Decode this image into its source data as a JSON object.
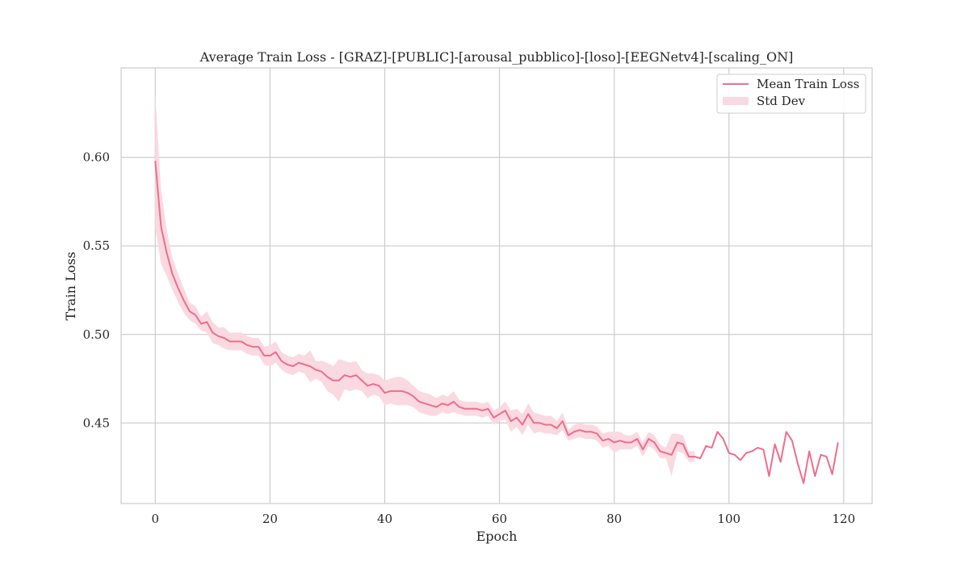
{
  "chart_data": {
    "type": "line",
    "title": "Average Train Loss - [GRAZ]-[PUBLIC]-[arousal_pubblico]-[loso]-[EEGNetv4]-[scaling_ON]",
    "xlabel": "Epoch",
    "ylabel": "Train Loss",
    "xlim": [
      -5.95,
      124.95
    ],
    "ylim": [
      0.4045,
      0.6505
    ],
    "xticks": [
      0,
      20,
      40,
      60,
      80,
      100,
      120
    ],
    "yticks": [
      0.45,
      0.5,
      0.55,
      0.6
    ],
    "xtick_labels": [
      "0",
      "20",
      "40",
      "60",
      "80",
      "100",
      "120"
    ],
    "ytick_labels": [
      "0.45",
      "0.50",
      "0.55",
      "0.60"
    ],
    "grid": true,
    "legend_position": "top-right",
    "colors": {
      "line": "#ee6e8c",
      "band": "#fbd9e1",
      "grid": "#cccccc",
      "frame": "#cccccc"
    },
    "series": [
      {
        "name": "Mean Train Loss",
        "kind": "line",
        "x": [
          0,
          1,
          2,
          3,
          4,
          5,
          6,
          7,
          8,
          9,
          10,
          11,
          12,
          13,
          14,
          15,
          16,
          17,
          18,
          19,
          20,
          21,
          22,
          23,
          24,
          25,
          26,
          27,
          28,
          29,
          30,
          31,
          32,
          33,
          34,
          35,
          36,
          37,
          38,
          39,
          40,
          41,
          42,
          43,
          44,
          45,
          46,
          47,
          48,
          49,
          50,
          51,
          52,
          53,
          54,
          55,
          56,
          57,
          58,
          59,
          60,
          61,
          62,
          63,
          64,
          65,
          66,
          67,
          68,
          69,
          70,
          71,
          72,
          73,
          74,
          75,
          76,
          77,
          78,
          79,
          80,
          81,
          82,
          83,
          84,
          85,
          86,
          87,
          88,
          89,
          90,
          91,
          92,
          93,
          94,
          95,
          96,
          97,
          98,
          99,
          100,
          101,
          102,
          103,
          104,
          105,
          106,
          107,
          108,
          109,
          110,
          111,
          112,
          113,
          114,
          115,
          116,
          117,
          118,
          119
        ],
        "y": [
          0.598,
          0.561,
          0.546,
          0.534,
          0.526,
          0.519,
          0.513,
          0.511,
          0.506,
          0.507,
          0.501,
          0.499,
          0.498,
          0.496,
          0.496,
          0.496,
          0.494,
          0.493,
          0.493,
          0.488,
          0.488,
          0.49,
          0.485,
          0.483,
          0.482,
          0.484,
          0.483,
          0.482,
          0.48,
          0.479,
          0.476,
          0.474,
          0.474,
          0.477,
          0.476,
          0.477,
          0.474,
          0.471,
          0.472,
          0.471,
          0.467,
          0.468,
          0.468,
          0.468,
          0.467,
          0.465,
          0.462,
          0.461,
          0.46,
          0.459,
          0.461,
          0.46,
          0.462,
          0.459,
          0.458,
          0.458,
          0.458,
          0.457,
          0.458,
          0.453,
          0.455,
          0.457,
          0.451,
          0.453,
          0.449,
          0.455,
          0.45,
          0.45,
          0.449,
          0.449,
          0.447,
          0.451,
          0.443,
          0.445,
          0.446,
          0.445,
          0.445,
          0.444,
          0.44,
          0.441,
          0.439,
          0.44,
          0.439,
          0.439,
          0.441,
          0.435,
          0.441,
          0.439,
          0.434,
          0.433,
          0.432,
          0.439,
          0.438,
          0.431,
          0.431,
          0.43,
          0.437,
          0.436,
          0.445,
          0.441,
          0.433,
          0.432,
          0.429,
          0.433,
          0.434,
          0.436,
          0.435,
          0.42,
          0.438,
          0.428,
          0.445,
          0.44,
          0.427,
          0.416,
          0.434,
          0.42,
          0.432,
          0.431,
          0.421,
          0.439
        ]
      },
      {
        "name": "Std Dev",
        "kind": "band",
        "x": [
          0,
          1,
          2,
          3,
          4,
          5,
          6,
          7,
          8,
          9,
          10,
          11,
          12,
          13,
          14,
          15,
          16,
          17,
          18,
          19,
          20,
          21,
          22,
          23,
          24,
          25,
          26,
          27,
          28,
          29,
          30,
          31,
          32,
          33,
          34,
          35,
          36,
          37,
          38,
          39,
          40,
          41,
          42,
          43,
          44,
          45,
          46,
          47,
          48,
          49,
          50,
          51,
          52,
          53,
          54,
          55,
          56,
          57,
          58,
          59,
          60,
          61,
          62,
          63,
          64,
          65,
          66,
          67,
          68,
          69,
          70,
          71,
          72,
          73,
          74,
          75,
          76,
          77,
          78,
          79,
          80,
          81,
          82,
          83,
          84,
          85,
          86,
          87,
          88,
          89,
          90,
          91,
          92,
          93,
          94
        ],
        "lower": [
          0.56,
          0.54,
          0.533,
          0.525,
          0.518,
          0.512,
          0.508,
          0.506,
          0.502,
          0.501,
          0.495,
          0.494,
          0.492,
          0.491,
          0.491,
          0.491,
          0.489,
          0.488,
          0.488,
          0.483,
          0.482,
          0.484,
          0.48,
          0.478,
          0.477,
          0.479,
          0.478,
          0.473,
          0.475,
          0.473,
          0.468,
          0.466,
          0.462,
          0.469,
          0.468,
          0.469,
          0.468,
          0.464,
          0.466,
          0.465,
          0.46,
          0.461,
          0.46,
          0.46,
          0.46,
          0.459,
          0.456,
          0.455,
          0.454,
          0.454,
          0.456,
          0.455,
          0.456,
          0.455,
          0.454,
          0.454,
          0.454,
          0.453,
          0.454,
          0.449,
          0.451,
          0.452,
          0.445,
          0.448,
          0.443,
          0.449,
          0.444,
          0.445,
          0.444,
          0.444,
          0.443,
          0.446,
          0.44,
          0.441,
          0.442,
          0.441,
          0.441,
          0.44,
          0.436,
          0.437,
          0.433,
          0.435,
          0.435,
          0.435,
          0.437,
          0.431,
          0.437,
          0.435,
          0.43,
          0.43,
          0.42,
          0.434,
          0.433,
          0.428,
          0.428
        ],
        "upper": [
          0.636,
          0.582,
          0.559,
          0.543,
          0.534,
          0.526,
          0.518,
          0.516,
          0.51,
          0.513,
          0.507,
          0.504,
          0.504,
          0.501,
          0.501,
          0.501,
          0.499,
          0.498,
          0.498,
          0.493,
          0.494,
          0.496,
          0.49,
          0.488,
          0.487,
          0.489,
          0.488,
          0.491,
          0.485,
          0.485,
          0.484,
          0.482,
          0.486,
          0.485,
          0.484,
          0.485,
          0.48,
          0.478,
          0.478,
          0.477,
          0.474,
          0.475,
          0.476,
          0.476,
          0.474,
          0.471,
          0.468,
          0.467,
          0.466,
          0.464,
          0.466,
          0.465,
          0.468,
          0.463,
          0.462,
          0.462,
          0.462,
          0.461,
          0.462,
          0.457,
          0.459,
          0.462,
          0.457,
          0.458,
          0.455,
          0.461,
          0.456,
          0.455,
          0.454,
          0.454,
          0.451,
          0.456,
          0.446,
          0.449,
          0.45,
          0.449,
          0.449,
          0.448,
          0.444,
          0.445,
          0.445,
          0.445,
          0.443,
          0.443,
          0.445,
          0.439,
          0.445,
          0.443,
          0.438,
          0.436,
          0.444,
          0.444,
          0.443,
          0.434,
          0.434
        ]
      }
    ]
  }
}
